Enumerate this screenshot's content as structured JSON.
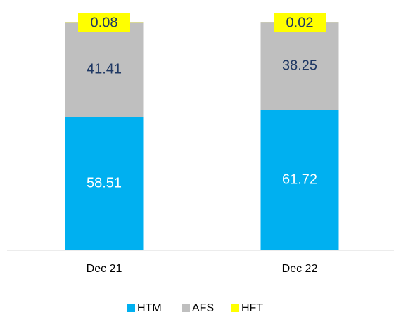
{
  "chart_data": {
    "type": "stacked_bar",
    "categories": [
      "Dec 21",
      "Dec 22"
    ],
    "series": [
      {
        "name": "HTM",
        "color": "#00b0f0",
        "values": [
          58.51,
          61.72
        ]
      },
      {
        "name": "AFS",
        "color": "#bfbfbf",
        "values": [
          41.41,
          38.25
        ]
      },
      {
        "name": "HFT",
        "color": "#ffff00",
        "values": [
          0.08,
          0.02
        ]
      }
    ],
    "ylim": [
      0,
      100
    ],
    "legend": "bottom"
  }
}
